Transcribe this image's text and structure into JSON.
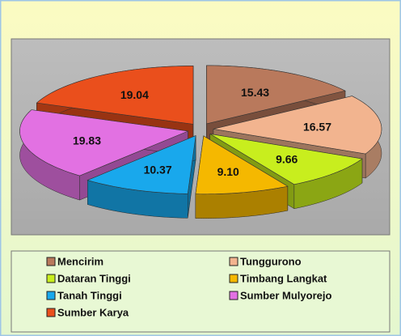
{
  "chart_data": {
    "type": "pie",
    "categories": [
      "Mencirim",
      "Tunggurono",
      "Dataran Tinggi",
      "Timbang Langkat",
      "Tanah Tinggi",
      "Sumber Mulyorejo",
      "Sumber Karya"
    ],
    "values": [
      15.43,
      16.57,
      9.66,
      9.1,
      10.37,
      19.83,
      19.04
    ],
    "value_labels": [
      "15.43",
      "16.57",
      "9.66",
      "9.10",
      "10.37",
      "19.83",
      "19.04"
    ],
    "colors": [
      "#b9795c",
      "#f2b48f",
      "#c8ee1e",
      "#f5b800",
      "#19a8ec",
      "#e271e2",
      "#ea4f1c"
    ],
    "legend": "bottom"
  }
}
